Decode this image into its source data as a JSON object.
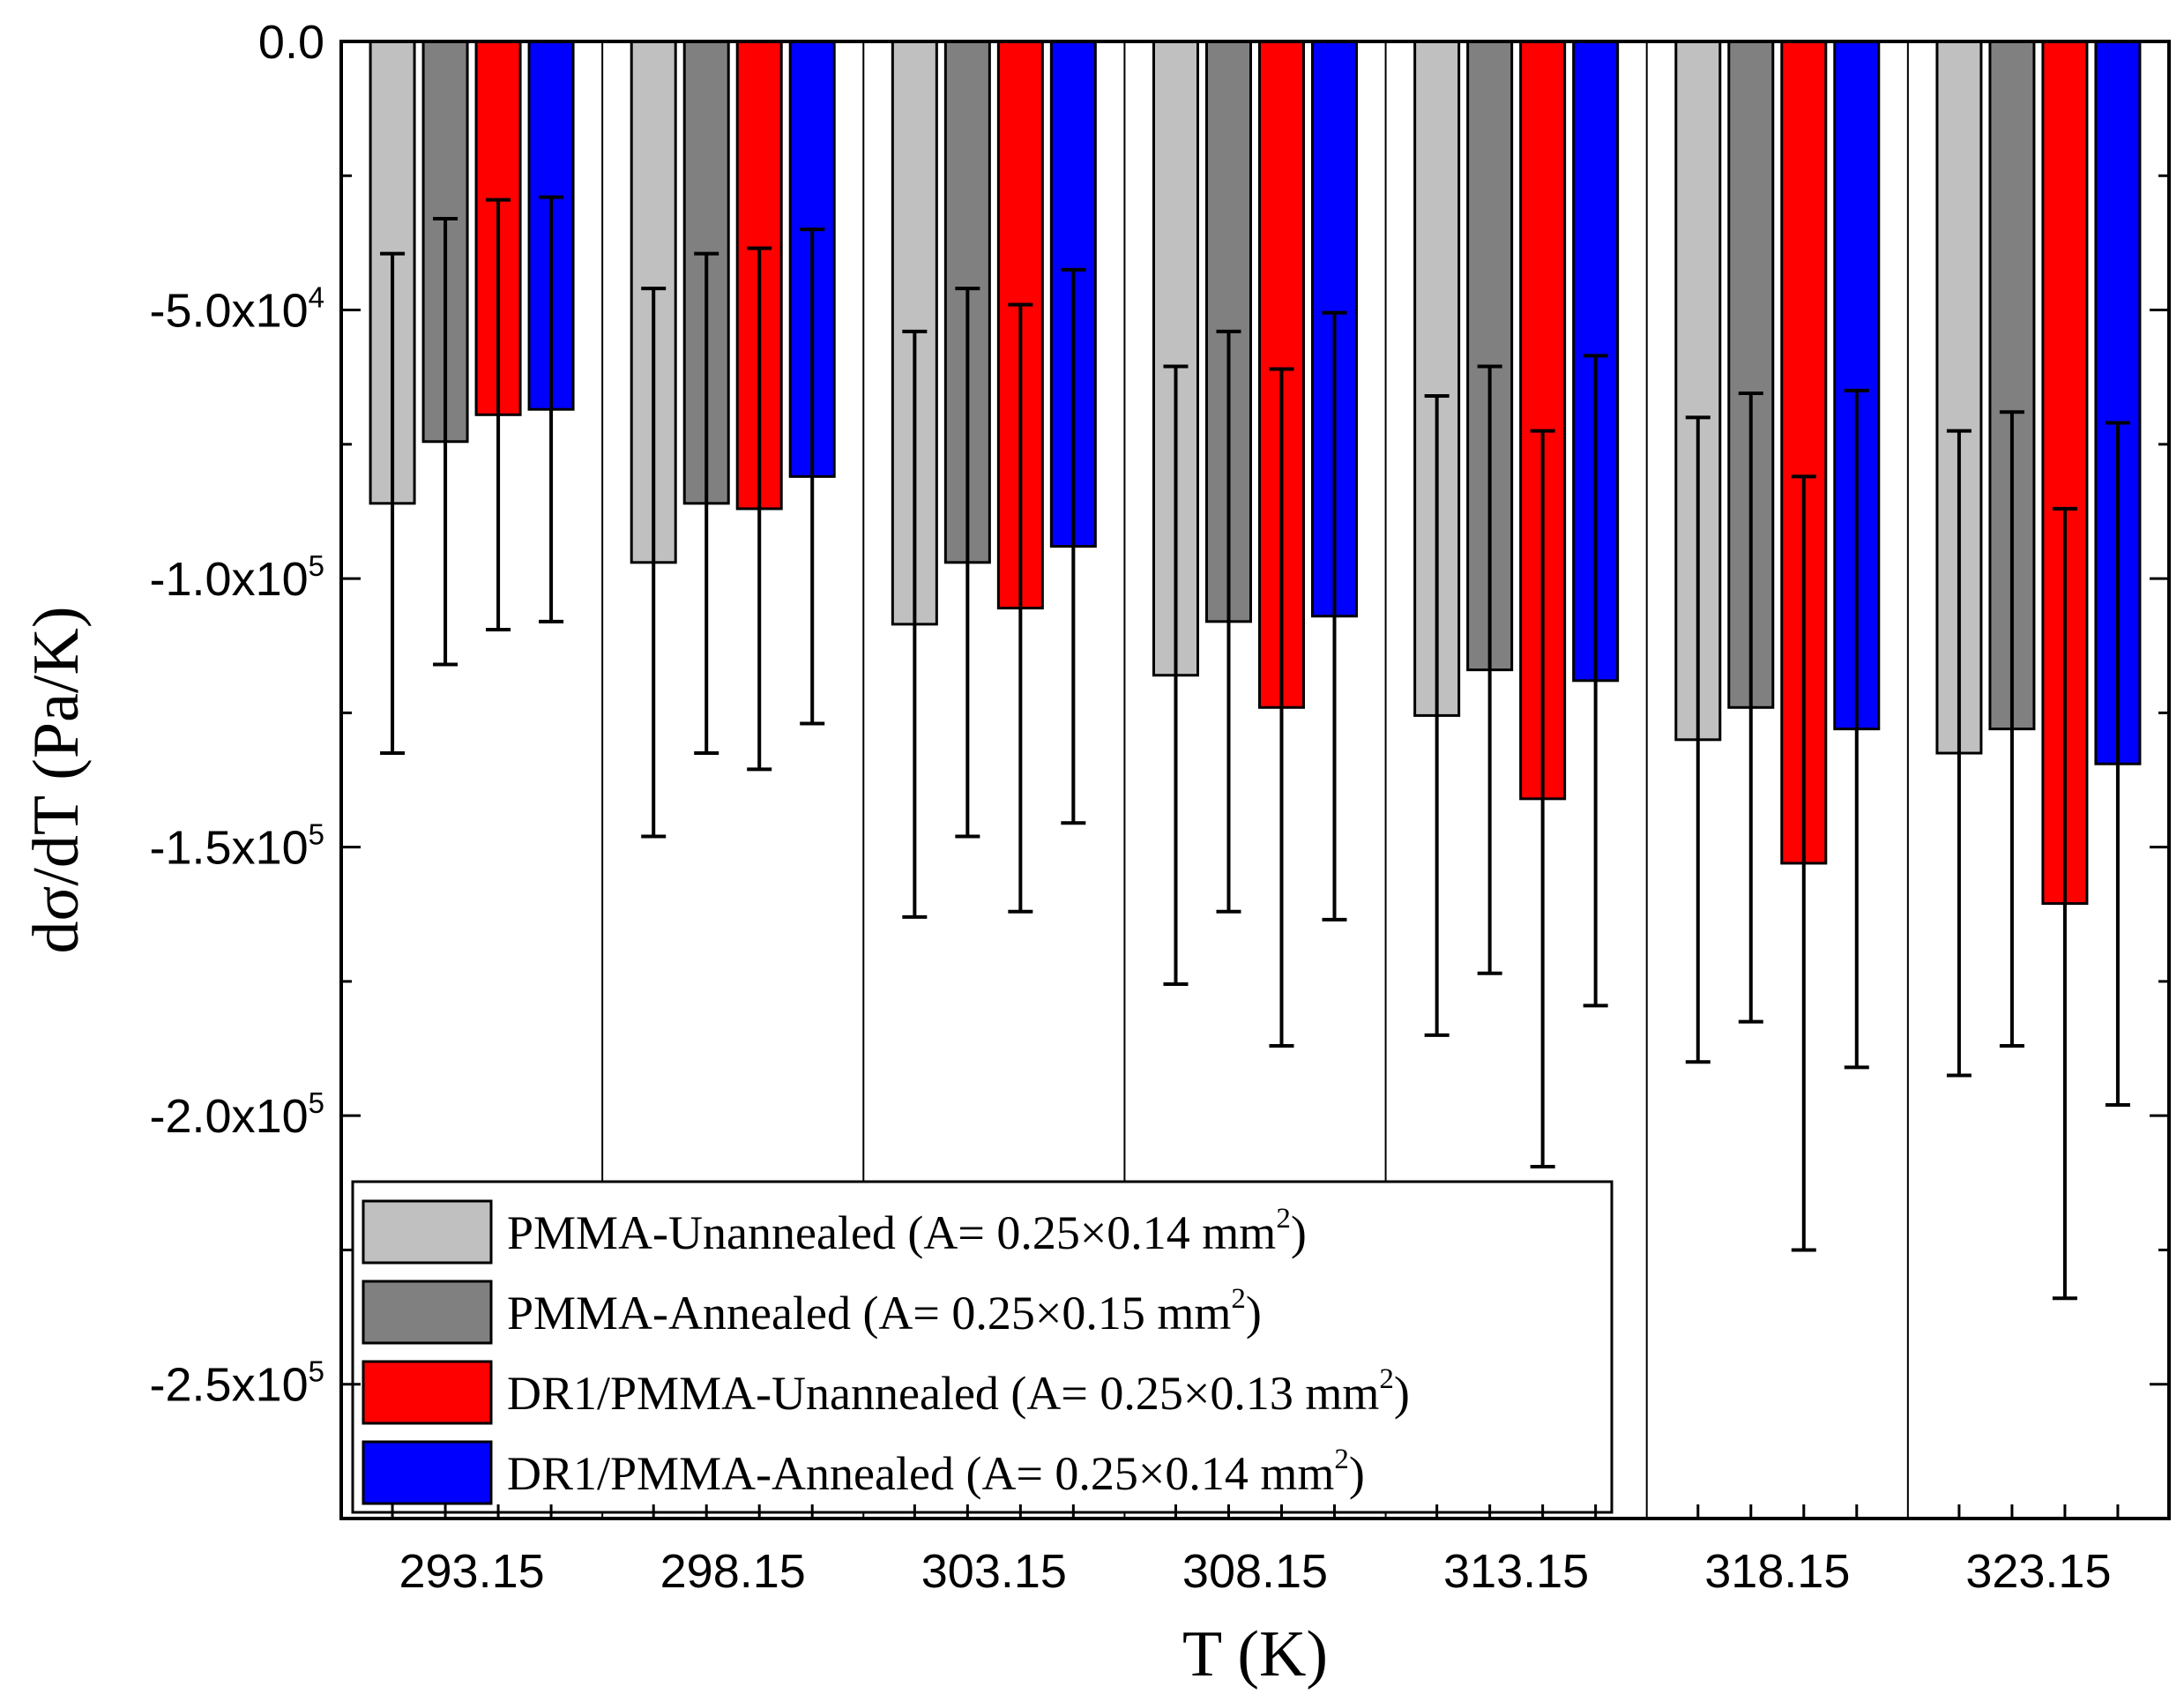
{
  "chart_data": {
    "type": "bar",
    "title": "",
    "xlabel": "T (K)",
    "ylabel": "dσ/dT (Pa/K)",
    "categories": [
      "293.15",
      "298.15",
      "303.15",
      "308.15",
      "313.15",
      "318.15",
      "323.15"
    ],
    "ylim": [
      -275000,
      0
    ],
    "yticks": [
      {
        "value": 0,
        "mantissa": "0.0",
        "exponent": ""
      },
      {
        "value": -50000,
        "mantissa": "-5.0x10",
        "exponent": "4"
      },
      {
        "value": -100000,
        "mantissa": "-1.0x10",
        "exponent": "5"
      },
      {
        "value": -150000,
        "mantissa": "-1.5x10",
        "exponent": "5"
      },
      {
        "value": -200000,
        "mantissa": "-2.0x10",
        "exponent": "5"
      },
      {
        "value": -250000,
        "mantissa": "-2.5x10",
        "exponent": "5"
      }
    ],
    "series": [
      {
        "name": "PMMA-Unannealed",
        "legend_label": "PMMA-Unannealed (A= 0.25×0.14 mm",
        "legend_sup": "2",
        "legend_close": ")",
        "color": "#c0c0c0",
        "values": [
          -86000,
          -97000,
          -108500,
          -118000,
          -125500,
          -130000,
          -132500
        ],
        "errors": [
          46500,
          51000,
          54500,
          57500,
          59500,
          60000,
          60000
        ]
      },
      {
        "name": "PMMA-Annealed",
        "legend_label": "PMMA-Annealed  (A= 0.25×0.15 mm",
        "legend_sup": "2",
        "legend_close": ")",
        "color": "#808080",
        "values": [
          -74500,
          -86000,
          -97000,
          -108000,
          -117000,
          -124000,
          -128000
        ],
        "errors": [
          41500,
          46500,
          51000,
          54000,
          56500,
          58500,
          59000
        ]
      },
      {
        "name": "DR1/PMMA-Unannealed",
        "legend_label": "DR1/PMMA-Unannealed (A= 0.25×0.13 mm",
        "legend_sup": "2",
        "legend_close": ")",
        "color": "#ff0000",
        "values": [
          -69500,
          -87000,
          -105500,
          -124000,
          -141000,
          -153000,
          -160500
        ],
        "errors": [
          40000,
          48500,
          56500,
          63000,
          68500,
          72000,
          73500
        ]
      },
      {
        "name": "DR1/PMMA-Annealed",
        "legend_label": "DR1/PMMA-Annealed (A= 0.25×0.14 mm",
        "legend_sup": "2",
        "legend_close": ")",
        "color": "#0000ff",
        "values": [
          -68500,
          -81000,
          -94000,
          -107000,
          -119000,
          -128000,
          -134500
        ],
        "errors": [
          39500,
          46000,
          51500,
          56500,
          60500,
          63000,
          63500
        ]
      }
    ],
    "legend_position": "bottom-left"
  }
}
